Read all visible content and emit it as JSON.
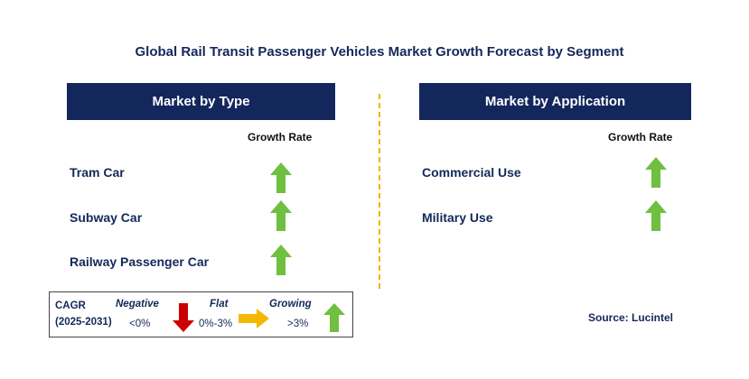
{
  "chart_data": {
    "type": "table",
    "title": "Global Rail Transit Passenger Vehicles Market Growth Forecast by Segment",
    "panels": [
      {
        "header": "Market by Type",
        "column_header": "Growth Rate",
        "rows": [
          {
            "label": "Tram Car",
            "growth": "growing"
          },
          {
            "label": "Subway Car",
            "growth": "growing"
          },
          {
            "label": "Railway Passenger Car",
            "growth": "growing"
          }
        ]
      },
      {
        "header": "Market by Application",
        "column_header": "Growth Rate",
        "rows": [
          {
            "label": "Commercial Use",
            "growth": "growing"
          },
          {
            "label": "Military Use",
            "growth": "growing"
          }
        ]
      }
    ],
    "legend": {
      "cagr_label": "CAGR",
      "period": "(2025-2031)",
      "items": [
        {
          "name": "Negative",
          "range": "<0%",
          "icon": "down-arrow-icon",
          "color": "#cc0000"
        },
        {
          "name": "Flat",
          "range": "0%-3%",
          "icon": "right-arrow-icon",
          "color": "#f5b800"
        },
        {
          "name": "Growing",
          "range": ">3%",
          "icon": "up-arrow-icon",
          "color": "#6fbf40"
        }
      ]
    },
    "source": "Source: Lucintel"
  }
}
